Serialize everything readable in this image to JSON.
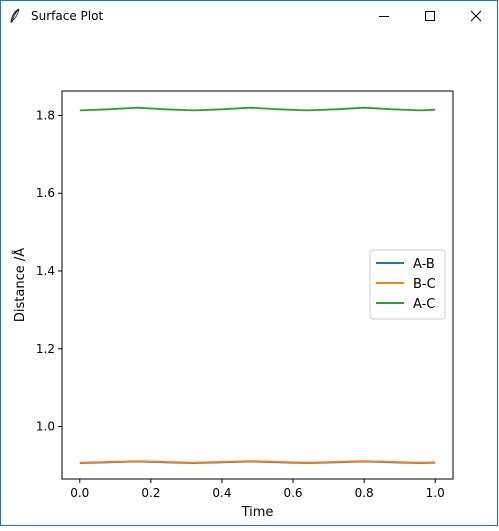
{
  "window": {
    "title": "Surface Plot",
    "icon": "feather-icon",
    "controls": [
      "minimize-icon",
      "maximize-icon",
      "close-icon"
    ]
  },
  "chart_data": {
    "type": "line",
    "xlabel": "Time",
    "ylabel": "Distance /Å",
    "xlim": [
      -0.05,
      1.05
    ],
    "ylim": [
      0.865,
      1.863
    ],
    "xticks": [
      0.0,
      0.2,
      0.4,
      0.6,
      0.8,
      1.0
    ],
    "xtick_labels": [
      "0.0",
      "0.2",
      "0.4",
      "0.6",
      "0.8",
      "1.0"
    ],
    "yticks": [
      1.0,
      1.2,
      1.4,
      1.6,
      1.8
    ],
    "ytick_labels": [
      "1.0",
      "1.2",
      "1.4",
      "1.6",
      "1.8"
    ],
    "grid": false,
    "legend": "center right",
    "x": [
      0.0,
      0.08,
      0.16,
      0.24,
      0.32,
      0.4,
      0.48,
      0.56,
      0.64,
      0.72,
      0.8,
      0.88,
      0.96,
      1.0
    ],
    "series": [
      {
        "name": "A-B",
        "color": "#1f77b4",
        "values": [
          0.906,
          0.908,
          0.91,
          0.908,
          0.906,
          0.908,
          0.91,
          0.908,
          0.906,
          0.908,
          0.91,
          0.908,
          0.906,
          0.907
        ]
      },
      {
        "name": "B-C",
        "color": "#ff7f0e",
        "values": [
          0.907,
          0.909,
          0.911,
          0.909,
          0.907,
          0.909,
          0.911,
          0.909,
          0.907,
          0.909,
          0.911,
          0.909,
          0.907,
          0.908
        ]
      },
      {
        "name": "A-C",
        "color": "#2ca02c",
        "values": [
          1.813,
          1.816,
          1.82,
          1.816,
          1.813,
          1.816,
          1.82,
          1.816,
          1.813,
          1.816,
          1.82,
          1.816,
          1.813,
          1.815
        ]
      }
    ]
  }
}
